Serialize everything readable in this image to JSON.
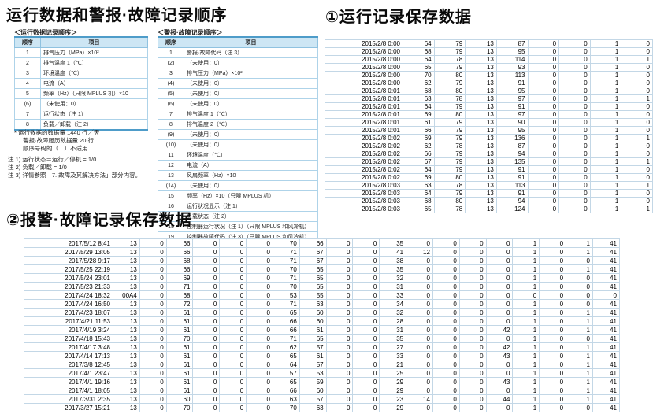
{
  "colors": {
    "order_table_header_bg": "#cde6f4",
    "order_table_border": "#4e9cc9",
    "grid_line": "#c3d7e6",
    "text": "#000000"
  },
  "titles": {
    "main": "运行数据和警报·故障记录顺序",
    "section1": "①运行记录保存数据",
    "section2": "②报警·故障记录保存数据"
  },
  "operation_order": {
    "caption": "＜运行数据记录顺序＞",
    "headers": [
      "顺序",
      "项目"
    ],
    "rows": [
      [
        "1",
        "排气压力（MPa）×10²"
      ],
      [
        "2",
        "排气温度 1（℃）"
      ],
      [
        "3",
        "环境温度（℃）"
      ],
      [
        "4",
        "电流（A）"
      ],
      [
        "5",
        "频率（Hz）（只限 MPLUS 机）×10"
      ],
      [
        "(6)",
        "（未使用：0）"
      ],
      [
        "7",
        "运行状态（注 1）"
      ],
      [
        "8",
        "负载／卸载（注 2）"
      ]
    ]
  },
  "alarm_order": {
    "caption": "＜警报·故障记录顺序＞",
    "headers": [
      "顺序",
      "项目"
    ],
    "rows": [
      [
        "1",
        "警报·故障代码（注 3）"
      ],
      [
        "(2)",
        "（未使用：0）"
      ],
      [
        "3",
        "排气压力（MPa）×10²"
      ],
      [
        "(4)",
        "（未使用：0）"
      ],
      [
        "(5)",
        "（未使用：0）"
      ],
      [
        "(6)",
        "（未使用：0）"
      ],
      [
        "7",
        "排气温度 1（℃）"
      ],
      [
        "8",
        "排气温度 2（℃）"
      ],
      [
        "(9)",
        "（未使用：0）"
      ],
      [
        "(10)",
        "（未使用：0）"
      ],
      [
        "11",
        "环境温度（℃）"
      ],
      [
        "12",
        "电流（A）"
      ],
      [
        "13",
        "风扇频率（Hz）×10"
      ],
      [
        "(14)",
        "（未使用：0）"
      ],
      [
        "15",
        "频率（Hz）×10（只限 MPLUS 机）"
      ],
      [
        "16",
        "运行状况显示（注 1）"
      ],
      [
        "17",
        "负载状态（注 2）"
      ],
      [
        "18",
        "控制器运行状况（注 1）（只限 MPLUS 和风冷机）"
      ],
      [
        "19",
        "控制器故障代码（注 3）（只限 MPLUS 和风冷机）"
      ]
    ]
  },
  "notes": {
    "bullets": [
      "*  运行数据的数据量  1440 行／天",
      "警报·故障履历数据量  20 行",
      "顺序号码的（　）不适用"
    ],
    "remarks": [
      "注 1) 运行状态＝运行／停机 = 1/0",
      "注 2) 负载／卸载 = 1/0",
      "注 3) 详情参照「7. 故障及其解决方法」部分内容。"
    ]
  },
  "operation_log": {
    "rows": [
      [
        "2015/2/8 0:00",
        64,
        79,
        13,
        87,
        0,
        0,
        1,
        0
      ],
      [
        "2015/2/8 0:00",
        68,
        79,
        13,
        95,
        0,
        0,
        1,
        0
      ],
      [
        "2015/2/8 0:00",
        64,
        78,
        13,
        114,
        0,
        0,
        1,
        1
      ],
      [
        "2015/2/8 0:00",
        65,
        79,
        13,
        93,
        0,
        0,
        1,
        0
      ],
      [
        "2015/2/8 0:00",
        70,
        80,
        13,
        113,
        0,
        0,
        1,
        0
      ],
      [
        "2015/2/8 0:00",
        62,
        79,
        13,
        91,
        0,
        0,
        1,
        0
      ],
      [
        "2015/2/8 0:01",
        68,
        80,
        13,
        95,
        0,
        0,
        1,
        0
      ],
      [
        "2015/2/8 0:01",
        63,
        78,
        13,
        97,
        0,
        0,
        1,
        1
      ],
      [
        "2015/2/8 0:01",
        64,
        79,
        13,
        91,
        0,
        0,
        1,
        0
      ],
      [
        "2015/2/8 0:01",
        69,
        80,
        13,
        97,
        0,
        0,
        1,
        0
      ],
      [
        "2015/2/8 0:01",
        61,
        79,
        13,
        90,
        0,
        0,
        1,
        0
      ],
      [
        "2015/2/8 0:01",
        66,
        79,
        13,
        95,
        0,
        0,
        1,
        0
      ],
      [
        "2015/2/8 0:02",
        69,
        79,
        13,
        136,
        0,
        0,
        1,
        1
      ],
      [
        "2015/2/8 0:02",
        62,
        78,
        13,
        87,
        0,
        0,
        1,
        0
      ],
      [
        "2015/2/8 0:02",
        66,
        79,
        13,
        94,
        0,
        0,
        1,
        0
      ],
      [
        "2015/2/8 0:02",
        67,
        79,
        13,
        135,
        0,
        0,
        1,
        1
      ],
      [
        "2015/2/8 0:02",
        64,
        79,
        13,
        91,
        0,
        0,
        1,
        0
      ],
      [
        "2015/2/8 0:02",
        69,
        80,
        13,
        91,
        0,
        0,
        1,
        0
      ],
      [
        "2015/2/8 0:03",
        63,
        78,
        13,
        113,
        0,
        0,
        1,
        1
      ],
      [
        "2015/2/8 0:03",
        64,
        79,
        13,
        91,
        0,
        0,
        1,
        0
      ],
      [
        "2015/2/8 0:03",
        68,
        80,
        13,
        94,
        0,
        0,
        1,
        0
      ],
      [
        "2015/2/8 0:03",
        65,
        78,
        13,
        124,
        0,
        0,
        1,
        1
      ]
    ]
  },
  "alarm_log": {
    "rows": [
      [
        "2017/5/12 8:41",
        "13",
        0,
        66,
        0,
        0,
        0,
        70,
        66,
        0,
        0,
        35,
        0,
        0,
        0,
        0,
        1,
        0,
        1,
        41
      ],
      [
        "2017/5/29 13:05",
        "13",
        0,
        66,
        0,
        0,
        0,
        71,
        67,
        0,
        0,
        41,
        12,
        0,
        0,
        0,
        1,
        0,
        1,
        41
      ],
      [
        "2017/5/28 9:17",
        "13",
        0,
        68,
        0,
        0,
        0,
        71,
        67,
        0,
        0,
        38,
        0,
        0,
        0,
        0,
        1,
        0,
        0,
        41
      ],
      [
        "2017/5/25 22:19",
        "13",
        0,
        66,
        0,
        0,
        0,
        70,
        65,
        0,
        0,
        35,
        0,
        0,
        0,
        0,
        1,
        0,
        1,
        41
      ],
      [
        "2017/5/24 23:01",
        "13",
        0,
        69,
        0,
        0,
        0,
        71,
        65,
        0,
        0,
        32,
        0,
        0,
        0,
        0,
        1,
        0,
        0,
        41
      ],
      [
        "2017/5/23 21:33",
        "13",
        0,
        71,
        0,
        0,
        0,
        70,
        65,
        0,
        0,
        31,
        0,
        0,
        0,
        0,
        1,
        0,
        0,
        41
      ],
      [
        "2017/4/24 18:32",
        "00A4",
        0,
        68,
        0,
        0,
        0,
        53,
        55,
        0,
        0,
        33,
        0,
        0,
        0,
        0,
        0,
        0,
        0,
        0
      ],
      [
        "2017/4/24 16:50",
        "13",
        0,
        72,
        0,
        0,
        0,
        71,
        63,
        0,
        0,
        34,
        0,
        0,
        0,
        0,
        1,
        0,
        0,
        41
      ],
      [
        "2017/4/23 18:07",
        "13",
        0,
        61,
        0,
        0,
        0,
        65,
        60,
        0,
        0,
        32,
        0,
        0,
        0,
        0,
        1,
        0,
        1,
        41
      ],
      [
        "2017/4/21 11:53",
        "13",
        0,
        61,
        0,
        0,
        0,
        66,
        60,
        0,
        0,
        28,
        0,
        0,
        0,
        0,
        1,
        0,
        1,
        41
      ],
      [
        "2017/4/19 3:24",
        "13",
        0,
        61,
        0,
        0,
        0,
        66,
        61,
        0,
        0,
        31,
        0,
        0,
        0,
        42,
        1,
        0,
        1,
        41
      ],
      [
        "2017/4/18 15:43",
        "13",
        0,
        70,
        0,
        0,
        0,
        71,
        65,
        0,
        0,
        35,
        0,
        0,
        0,
        0,
        1,
        0,
        0,
        41
      ],
      [
        "2017/4/17 3:48",
        "13",
        0,
        61,
        0,
        0,
        0,
        62,
        57,
        0,
        0,
        27,
        0,
        0,
        0,
        42,
        1,
        0,
        1,
        41
      ],
      [
        "2017/4/14 17:13",
        "13",
        0,
        61,
        0,
        0,
        0,
        65,
        61,
        0,
        0,
        33,
        0,
        0,
        0,
        43,
        1,
        0,
        1,
        41
      ],
      [
        "2017/3/8 12:45",
        "13",
        0,
        61,
        0,
        0,
        0,
        64,
        57,
        0,
        0,
        21,
        0,
        0,
        0,
        0,
        1,
        0,
        1,
        41
      ],
      [
        "2017/4/1 23:47",
        "13",
        0,
        61,
        0,
        0,
        0,
        57,
        53,
        0,
        0,
        25,
        0,
        0,
        0,
        0,
        1,
        0,
        1,
        41
      ],
      [
        "2017/4/1 19:16",
        "13",
        0,
        61,
        0,
        0,
        0,
        65,
        59,
        0,
        0,
        29,
        0,
        0,
        0,
        43,
        1,
        0,
        1,
        41
      ],
      [
        "2017/4/1 18:05",
        "13",
        0,
        61,
        0,
        0,
        0,
        66,
        60,
        0,
        0,
        29,
        0,
        0,
        0,
        0,
        1,
        0,
        1,
        41
      ],
      [
        "2017/3/31 2:35",
        "13",
        0,
        60,
        0,
        0,
        0,
        63,
        57,
        0,
        0,
        23,
        14,
        0,
        0,
        44,
        1,
        0,
        1,
        41
      ],
      [
        "2017/3/27 15:21",
        "13",
        0,
        70,
        0,
        0,
        0,
        70,
        63,
        0,
        0,
        29,
        0,
        0,
        0,
        0,
        1,
        0,
        0,
        41
      ]
    ]
  }
}
